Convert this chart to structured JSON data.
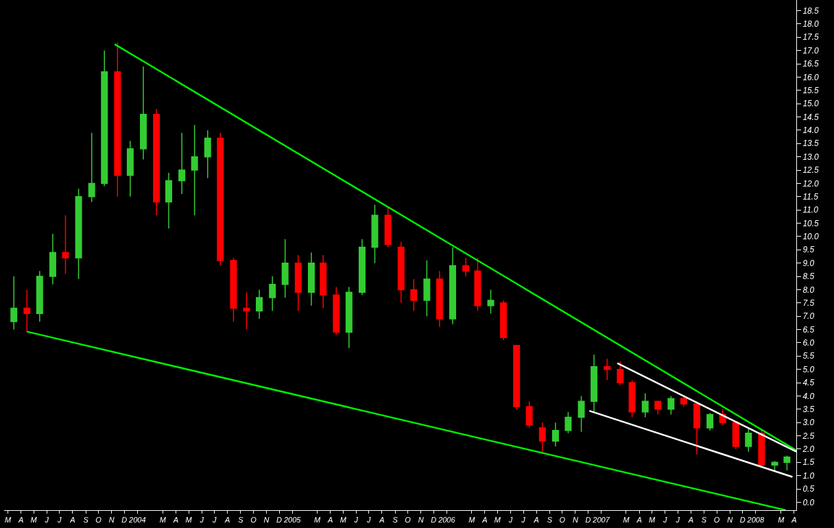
{
  "chart_data": {
    "type": "candlestick",
    "x": [
      "2003-03-15",
      "2003-04-15",
      "2003-05-15",
      "2003-06-15",
      "2003-07-15",
      "2003-08-15",
      "2003-09-15",
      "2003-10-15",
      "2003-11-15",
      "2003-12-15",
      "2004-01-15",
      "2004-02-15",
      "2004-03-15",
      "2004-04-15",
      "2004-05-15",
      "2004-06-15",
      "2004-07-15",
      "2004-08-15",
      "2004-09-15",
      "2004-10-15",
      "2004-11-15",
      "2004-12-15",
      "2005-01-15",
      "2005-02-15",
      "2005-03-15",
      "2005-04-15",
      "2005-05-15",
      "2005-06-15",
      "2005-07-15",
      "2005-08-15",
      "2005-09-15",
      "2005-10-15",
      "2005-11-15",
      "2005-12-15",
      "2006-01-15",
      "2006-02-15",
      "2006-03-15",
      "2006-04-15",
      "2006-05-15",
      "2006-06-15",
      "2006-07-15",
      "2006-08-15",
      "2006-09-15",
      "2006-10-15",
      "2006-11-15",
      "2006-12-15",
      "2007-01-15",
      "2007-02-15",
      "2007-03-15",
      "2007-04-15",
      "2007-05-15",
      "2007-06-15",
      "2007-07-15",
      "2007-08-15",
      "2007-09-15",
      "2007-10-15",
      "2007-11-15",
      "2007-12-15",
      "2008-01-15",
      "2008-02-15",
      "2008-03-15"
    ],
    "ohlc": [
      [
        6.8,
        8.5,
        6.5,
        7.3
      ],
      [
        7.3,
        8.0,
        6.4,
        7.1
      ],
      [
        7.1,
        8.7,
        6.8,
        8.5
      ],
      [
        8.5,
        10.1,
        8.2,
        9.4
      ],
      [
        9.4,
        10.8,
        8.6,
        9.2
      ],
      [
        9.2,
        11.8,
        8.4,
        11.5
      ],
      [
        11.5,
        13.9,
        11.3,
        12.0
      ],
      [
        12.0,
        17.0,
        11.9,
        16.2
      ],
      [
        16.2,
        17.3,
        11.5,
        12.3
      ],
      [
        12.3,
        13.6,
        11.5,
        13.3
      ],
      [
        13.3,
        16.4,
        12.9,
        14.6
      ],
      [
        14.6,
        14.8,
        10.8,
        11.3
      ],
      [
        11.3,
        12.4,
        10.3,
        12.1
      ],
      [
        12.1,
        13.9,
        11.6,
        12.5
      ],
      [
        12.5,
        14.2,
        10.8,
        13.0
      ],
      [
        13.0,
        14.0,
        12.2,
        13.7
      ],
      [
        13.7,
        13.9,
        8.9,
        9.1
      ],
      [
        9.1,
        9.2,
        6.8,
        7.3
      ],
      [
        7.3,
        7.9,
        6.5,
        7.2
      ],
      [
        7.2,
        8.0,
        6.9,
        7.7
      ],
      [
        7.7,
        8.5,
        7.2,
        8.2
      ],
      [
        8.2,
        9.9,
        7.7,
        9.0
      ],
      [
        9.0,
        9.3,
        7.2,
        7.9
      ],
      [
        7.9,
        9.4,
        7.4,
        9.0
      ],
      [
        9.0,
        9.3,
        7.3,
        7.8
      ],
      [
        7.8,
        8.1,
        6.3,
        6.4
      ],
      [
        6.4,
        8.1,
        5.8,
        7.9
      ],
      [
        7.9,
        9.9,
        7.8,
        9.6
      ],
      [
        9.6,
        11.2,
        9.0,
        10.8
      ],
      [
        10.8,
        11.1,
        9.6,
        9.7
      ],
      [
        9.6,
        9.8,
        7.5,
        8.0
      ],
      [
        8.0,
        8.4,
        7.2,
        7.6
      ],
      [
        7.6,
        9.1,
        7.0,
        8.4
      ],
      [
        8.4,
        8.7,
        6.6,
        6.9
      ],
      [
        6.9,
        9.6,
        6.7,
        8.9
      ],
      [
        8.9,
        9.2,
        8.5,
        8.7
      ],
      [
        8.7,
        9.2,
        7.2,
        7.4
      ],
      [
        7.4,
        8.0,
        7.1,
        7.6
      ],
      [
        7.5,
        7.6,
        6.1,
        6.2
      ],
      [
        5.9,
        5.9,
        3.5,
        3.6
      ],
      [
        3.6,
        3.8,
        2.8,
        2.9
      ],
      [
        2.8,
        3.0,
        1.85,
        2.3
      ],
      [
        2.3,
        3.0,
        2.1,
        2.7
      ],
      [
        2.7,
        3.4,
        2.6,
        3.2
      ],
      [
        3.2,
        4.0,
        2.65,
        3.8
      ],
      [
        3.8,
        5.55,
        3.4,
        5.1
      ],
      [
        5.1,
        5.4,
        4.6,
        5.0
      ],
      [
        5.0,
        5.3,
        4.4,
        4.5
      ],
      [
        4.5,
        4.6,
        3.2,
        3.4
      ],
      [
        3.4,
        4.1,
        3.2,
        3.8
      ],
      [
        3.8,
        3.8,
        3.3,
        3.5
      ],
      [
        3.5,
        4.0,
        3.3,
        3.9
      ],
      [
        3.9,
        4.0,
        3.6,
        3.7
      ],
      [
        3.7,
        3.8,
        1.8,
        2.8
      ],
      [
        2.8,
        3.35,
        2.7,
        3.3
      ],
      [
        3.3,
        3.5,
        2.9,
        3.0
      ],
      [
        3.0,
        3.05,
        2.0,
        2.1
      ],
      [
        2.1,
        2.75,
        1.9,
        2.6
      ],
      [
        2.6,
        2.7,
        1.3,
        1.4
      ],
      [
        1.4,
        1.55,
        1.2,
        1.5
      ],
      [
        1.5,
        1.75,
        1.2,
        1.7
      ]
    ],
    "colors": [
      "#33cc33",
      "#ff0000",
      "#33cc33",
      "#33cc33",
      "#ff0000",
      "#33cc33",
      "#33cc33",
      "#33cc33",
      "#ff0000",
      "#33cc33",
      "#33cc33",
      "#ff0000",
      "#33cc33",
      "#33cc33",
      "#33cc33",
      "#33cc33",
      "#ff0000",
      "#ff0000",
      "#ff0000",
      "#33cc33",
      "#33cc33",
      "#33cc33",
      "#ff0000",
      "#33cc33",
      "#ff0000",
      "#ff0000",
      "#33cc33",
      "#33cc33",
      "#33cc33",
      "#ff0000",
      "#ff0000",
      "#ff0000",
      "#33cc33",
      "#ff0000",
      "#33cc33",
      "#ff0000",
      "#ff0000",
      "#33cc33",
      "#ff0000",
      "#ff0000",
      "#ff0000",
      "#ff0000",
      "#33cc33",
      "#33cc33",
      "#33cc33",
      "#33cc33",
      "#ff0000",
      "#ff0000",
      "#ff0000",
      "#33cc33",
      "#ff0000",
      "#33cc33",
      "#ff0000",
      "#ff0000",
      "#33cc33",
      "#ff0000",
      "#ff0000",
      "#33cc33",
      "#ff0000",
      "#33cc33",
      "#33cc33"
    ],
    "series": [
      {
        "type": "line",
        "color": "#00ee00",
        "x": [
          "2003-11-08",
          "2008-04-06"
        ],
        "values": [
          17.24,
          1.95
        ]
      },
      {
        "type": "line",
        "color": "#00ee00",
        "x": [
          "2003-04-15",
          "2008-03-12"
        ],
        "values": [
          6.42,
          -0.3
        ]
      },
      {
        "type": "line",
        "color": "#ffffff",
        "x": [
          "2007-02-08",
          "2008-04-06"
        ],
        "values": [
          5.23,
          1.9
        ]
      },
      {
        "type": "line",
        "color": "#ffffff",
        "x": [
          "2006-12-04",
          "2008-03-28"
        ],
        "values": [
          3.44,
          0.95
        ]
      }
    ],
    "xlim": [
      "2003-02-20",
      "2008-04-06"
    ],
    "xticks": [
      {
        "value": "2003-03-01",
        "label": "M"
      },
      {
        "value": "2003-04-01",
        "label": "A"
      },
      {
        "value": "2003-05-01",
        "label": "M"
      },
      {
        "value": "2003-06-01",
        "label": "J"
      },
      {
        "value": "2003-07-01",
        "label": "J"
      },
      {
        "value": "2003-08-01",
        "label": "A"
      },
      {
        "value": "2003-09-01",
        "label": "S"
      },
      {
        "value": "2003-10-01",
        "label": "O"
      },
      {
        "value": "2003-11-01",
        "label": "N"
      },
      {
        "value": "2003-12-01",
        "label": "D"
      },
      {
        "value": "2004-01-01",
        "label": "2004"
      },
      {
        "value": "2004-03-01",
        "label": "M"
      },
      {
        "value": "2004-04-01",
        "label": "A"
      },
      {
        "value": "2004-05-01",
        "label": "M"
      },
      {
        "value": "2004-06-01",
        "label": "J"
      },
      {
        "value": "2004-07-01",
        "label": "J"
      },
      {
        "value": "2004-08-01",
        "label": "A"
      },
      {
        "value": "2004-09-01",
        "label": "S"
      },
      {
        "value": "2004-10-01",
        "label": "O"
      },
      {
        "value": "2004-11-01",
        "label": "N"
      },
      {
        "value": "2004-12-01",
        "label": "D"
      },
      {
        "value": "2005-01-01",
        "label": "2005"
      },
      {
        "value": "2005-03-01",
        "label": "M"
      },
      {
        "value": "2005-04-01",
        "label": "A"
      },
      {
        "value": "2005-05-01",
        "label": "M"
      },
      {
        "value": "2005-06-01",
        "label": "J"
      },
      {
        "value": "2005-07-01",
        "label": "J"
      },
      {
        "value": "2005-08-01",
        "label": "A"
      },
      {
        "value": "2005-09-01",
        "label": "S"
      },
      {
        "value": "2005-10-01",
        "label": "O"
      },
      {
        "value": "2005-11-01",
        "label": "N"
      },
      {
        "value": "2005-12-01",
        "label": "D"
      },
      {
        "value": "2006-01-01",
        "label": "2006"
      },
      {
        "value": "2006-03-01",
        "label": "M"
      },
      {
        "value": "2006-04-01",
        "label": "A"
      },
      {
        "value": "2006-05-01",
        "label": "M"
      },
      {
        "value": "2006-06-01",
        "label": "J"
      },
      {
        "value": "2006-07-01",
        "label": "J"
      },
      {
        "value": "2006-08-01",
        "label": "A"
      },
      {
        "value": "2006-09-01",
        "label": "S"
      },
      {
        "value": "2006-10-01",
        "label": "O"
      },
      {
        "value": "2006-11-01",
        "label": "N"
      },
      {
        "value": "2006-12-01",
        "label": "D"
      },
      {
        "value": "2007-01-01",
        "label": "2007"
      },
      {
        "value": "2007-03-01",
        "label": "M"
      },
      {
        "value": "2007-04-01",
        "label": "A"
      },
      {
        "value": "2007-05-01",
        "label": "M"
      },
      {
        "value": "2007-06-01",
        "label": "J"
      },
      {
        "value": "2007-07-01",
        "label": "J"
      },
      {
        "value": "2007-08-01",
        "label": "A"
      },
      {
        "value": "2007-09-01",
        "label": "S"
      },
      {
        "value": "2007-10-01",
        "label": "O"
      },
      {
        "value": "2007-11-01",
        "label": "N"
      },
      {
        "value": "2007-12-01",
        "label": "D"
      },
      {
        "value": "2008-01-01",
        "label": "2008"
      },
      {
        "value": "2008-03-01",
        "label": "M"
      },
      {
        "value": "2008-04-01",
        "label": "A"
      }
    ],
    "ylim": [
      -0.3,
      18.9
    ],
    "yticks": [
      {
        "value": 0,
        "label": "0.0"
      },
      0.5,
      {
        "value": 1,
        "label": "1.0"
      },
      1.5,
      {
        "value": 2,
        "label": "2.0"
      },
      2.5,
      {
        "value": 3,
        "label": "3.0"
      },
      3.5,
      {
        "value": 4,
        "label": "4.0"
      },
      4.5,
      {
        "value": 5,
        "label": "5.0"
      },
      5.5,
      {
        "value": 6,
        "label": "6.0"
      },
      6.5,
      {
        "value": 7,
        "label": "7.0"
      },
      7.5,
      {
        "value": 8,
        "label": "8.0"
      },
      8.5,
      {
        "value": 9,
        "label": "9.0"
      },
      9.5,
      {
        "value": 10,
        "label": "10.0"
      },
      10.5,
      {
        "value": 11,
        "label": "11.0"
      },
      11.5,
      {
        "value": 12,
        "label": "12.0"
      },
      12.5,
      {
        "value": 13,
        "label": "13.0"
      },
      13.5,
      {
        "value": 14,
        "label": "14.0"
      },
      14.5,
      {
        "value": 15,
        "label": "15.0"
      },
      15.5,
      {
        "value": 16,
        "label": "16.0"
      },
      16.5,
      {
        "value": 17,
        "label": "17.0"
      },
      17.5,
      {
        "value": 18,
        "label": "18.0"
      },
      18.5
    ],
    "grid": false
  }
}
